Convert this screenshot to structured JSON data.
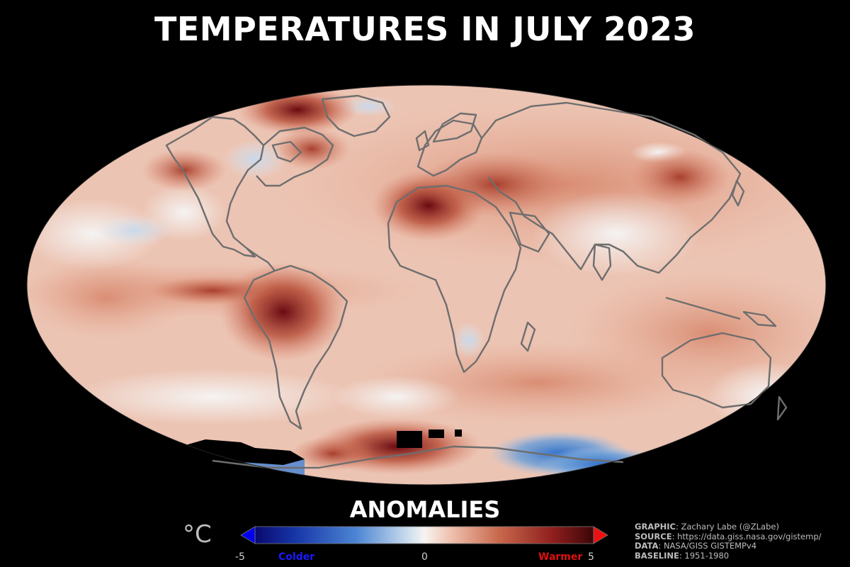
{
  "title": "TEMPERATURES IN JULY 2023",
  "map": {
    "projection": "Mollweide",
    "variable": "surface temperature anomaly (July 2023)",
    "coastline_color": "#6e6e6e",
    "hotspots": [
      "Arctic Greenland/Canada",
      "Mediterranean/North Africa",
      "Amazon / eastern Pacific",
      "Antarctica (Pacific sector)"
    ],
    "coldspots": [
      "Antarctica (Indian sector)",
      "North Pacific",
      "southern Africa"
    ]
  },
  "legend": {
    "title": "ANOMALIES",
    "unit": "°C",
    "min_label": "-5",
    "mid_label": "0",
    "max_label": "5",
    "cold_label": "Colder",
    "warm_label": "Warmer",
    "range": [
      -5,
      5
    ],
    "colors": [
      "#0000cc",
      "#3a6fd8",
      "#9cc0e6",
      "#f7f4f2",
      "#e7a891",
      "#c0563c",
      "#7a0e14"
    ]
  },
  "credits": [
    {
      "key": "GRAPHIC",
      "value": "Zachary Labe (@ZLabe)"
    },
    {
      "key": "SOURCE",
      "value": "https://data.giss.nasa.gov/gistemp/"
    },
    {
      "key": "DATA",
      "value": "NASA/GISS GISTEMPv4"
    },
    {
      "key": "BASELINE",
      "value": "1951-1980"
    }
  ]
}
